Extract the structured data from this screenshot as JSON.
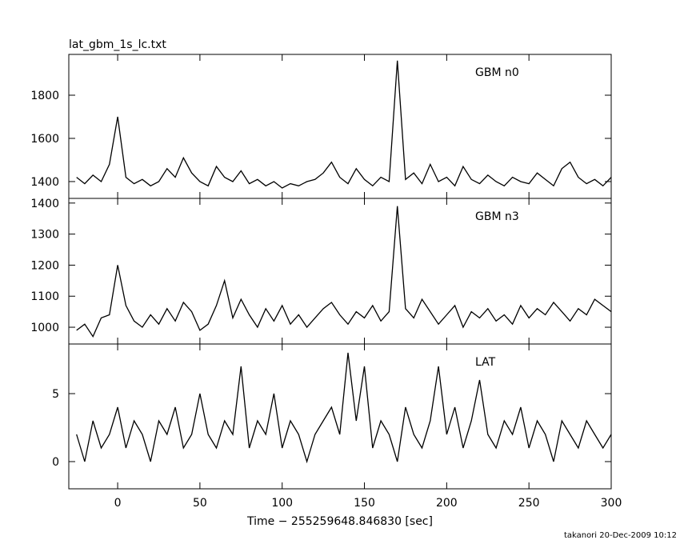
{
  "footer": "takanori 20-Dec-2009 10:12",
  "chart_data": [
    {
      "type": "line",
      "title": "lat_gbm_1s_lc.txt",
      "annotation": "GBM n0",
      "color": "#000000",
      "xlim": [
        -29.7,
        300
      ],
      "xticks": [
        0,
        50,
        100,
        150,
        200,
        250,
        300
      ],
      "ylim": [
        1322,
        1989
      ],
      "yticks": [
        1400,
        1600,
        1800
      ],
      "x": [
        -25,
        -20,
        -15,
        -10,
        -5,
        0,
        5,
        10,
        15,
        20,
        25,
        30,
        35,
        40,
        45,
        50,
        55,
        60,
        65,
        70,
        75,
        80,
        85,
        90,
        95,
        100,
        105,
        110,
        115,
        120,
        125,
        130,
        135,
        140,
        145,
        150,
        155,
        160,
        165,
        170,
        175,
        180,
        185,
        190,
        195,
        200,
        205,
        210,
        215,
        220,
        225,
        230,
        235,
        240,
        245,
        250,
        255,
        260,
        265,
        270,
        275,
        280,
        285,
        290,
        295,
        300
      ],
      "values": [
        1420,
        1390,
        1430,
        1400,
        1480,
        1700,
        1420,
        1390,
        1410,
        1380,
        1400,
        1460,
        1420,
        1510,
        1440,
        1400,
        1380,
        1470,
        1420,
        1400,
        1450,
        1390,
        1410,
        1380,
        1400,
        1370,
        1390,
        1380,
        1400,
        1410,
        1440,
        1490,
        1420,
        1390,
        1460,
        1410,
        1380,
        1420,
        1400,
        1960,
        1410,
        1440,
        1390,
        1480,
        1400,
        1420,
        1380,
        1470,
        1410,
        1390,
        1430,
        1400,
        1380,
        1420,
        1400,
        1390,
        1440,
        1410,
        1380,
        1460,
        1490,
        1420,
        1390,
        1410,
        1380,
        1420
      ]
    },
    {
      "type": "line",
      "annotation": "GBM n3",
      "color": "#000000",
      "xlim": [
        -29.7,
        300
      ],
      "xticks": [
        0,
        50,
        100,
        150,
        200,
        250,
        300
      ],
      "ylim": [
        946,
        1415
      ],
      "yticks": [
        1000,
        1100,
        1200,
        1300,
        1400
      ],
      "x": [
        -25,
        -20,
        -15,
        -10,
        -5,
        0,
        5,
        10,
        15,
        20,
        25,
        30,
        35,
        40,
        45,
        50,
        55,
        60,
        65,
        70,
        75,
        80,
        85,
        90,
        95,
        100,
        105,
        110,
        115,
        120,
        125,
        130,
        135,
        140,
        145,
        150,
        155,
        160,
        165,
        170,
        175,
        180,
        185,
        190,
        195,
        200,
        205,
        210,
        215,
        220,
        225,
        230,
        235,
        240,
        245,
        250,
        255,
        260,
        265,
        270,
        275,
        280,
        285,
        290,
        295,
        300
      ],
      "values": [
        990,
        1010,
        970,
        1030,
        1040,
        1200,
        1070,
        1020,
        1000,
        1040,
        1010,
        1060,
        1020,
        1080,
        1050,
        990,
        1010,
        1070,
        1150,
        1030,
        1090,
        1040,
        1000,
        1060,
        1020,
        1070,
        1010,
        1040,
        1000,
        1030,
        1060,
        1080,
        1040,
        1010,
        1050,
        1030,
        1070,
        1020,
        1050,
        1390,
        1060,
        1030,
        1090,
        1050,
        1010,
        1040,
        1070,
        1000,
        1050,
        1030,
        1060,
        1020,
        1040,
        1010,
        1070,
        1030,
        1060,
        1040,
        1080,
        1050,
        1020,
        1060,
        1040,
        1090,
        1070,
        1050
      ]
    },
    {
      "type": "line",
      "annotation": "LAT",
      "color": "#000000",
      "xlabel": "Time − 255259648.846830 [sec]",
      "xlim": [
        -29.7,
        300
      ],
      "xticks": [
        0,
        50,
        100,
        150,
        200,
        250,
        300
      ],
      "ylim": [
        -2,
        8.65
      ],
      "yticks": [
        0,
        5
      ],
      "x": [
        -25,
        -20,
        -15,
        -10,
        -5,
        0,
        5,
        10,
        15,
        20,
        25,
        30,
        35,
        40,
        45,
        50,
        55,
        60,
        65,
        70,
        75,
        80,
        85,
        90,
        95,
        100,
        105,
        110,
        115,
        120,
        125,
        130,
        135,
        140,
        145,
        150,
        155,
        160,
        165,
        170,
        175,
        180,
        185,
        190,
        195,
        200,
        205,
        210,
        215,
        220,
        225,
        230,
        235,
        240,
        245,
        250,
        255,
        260,
        265,
        270,
        275,
        280,
        285,
        290,
        295,
        300
      ],
      "values": [
        2,
        0,
        3,
        1,
        2,
        4,
        1,
        3,
        2,
        0,
        3,
        2,
        4,
        1,
        2,
        5,
        2,
        1,
        3,
        2,
        7,
        1,
        3,
        2,
        5,
        1,
        3,
        2,
        0,
        2,
        3,
        4,
        2,
        8,
        3,
        7,
        1,
        3,
        2,
        0,
        4,
        2,
        1,
        3,
        7,
        2,
        4,
        1,
        3,
        6,
        2,
        1,
        3,
        2,
        4,
        1,
        3,
        2,
        0,
        3,
        2,
        1,
        3,
        2,
        1,
        2
      ]
    }
  ]
}
